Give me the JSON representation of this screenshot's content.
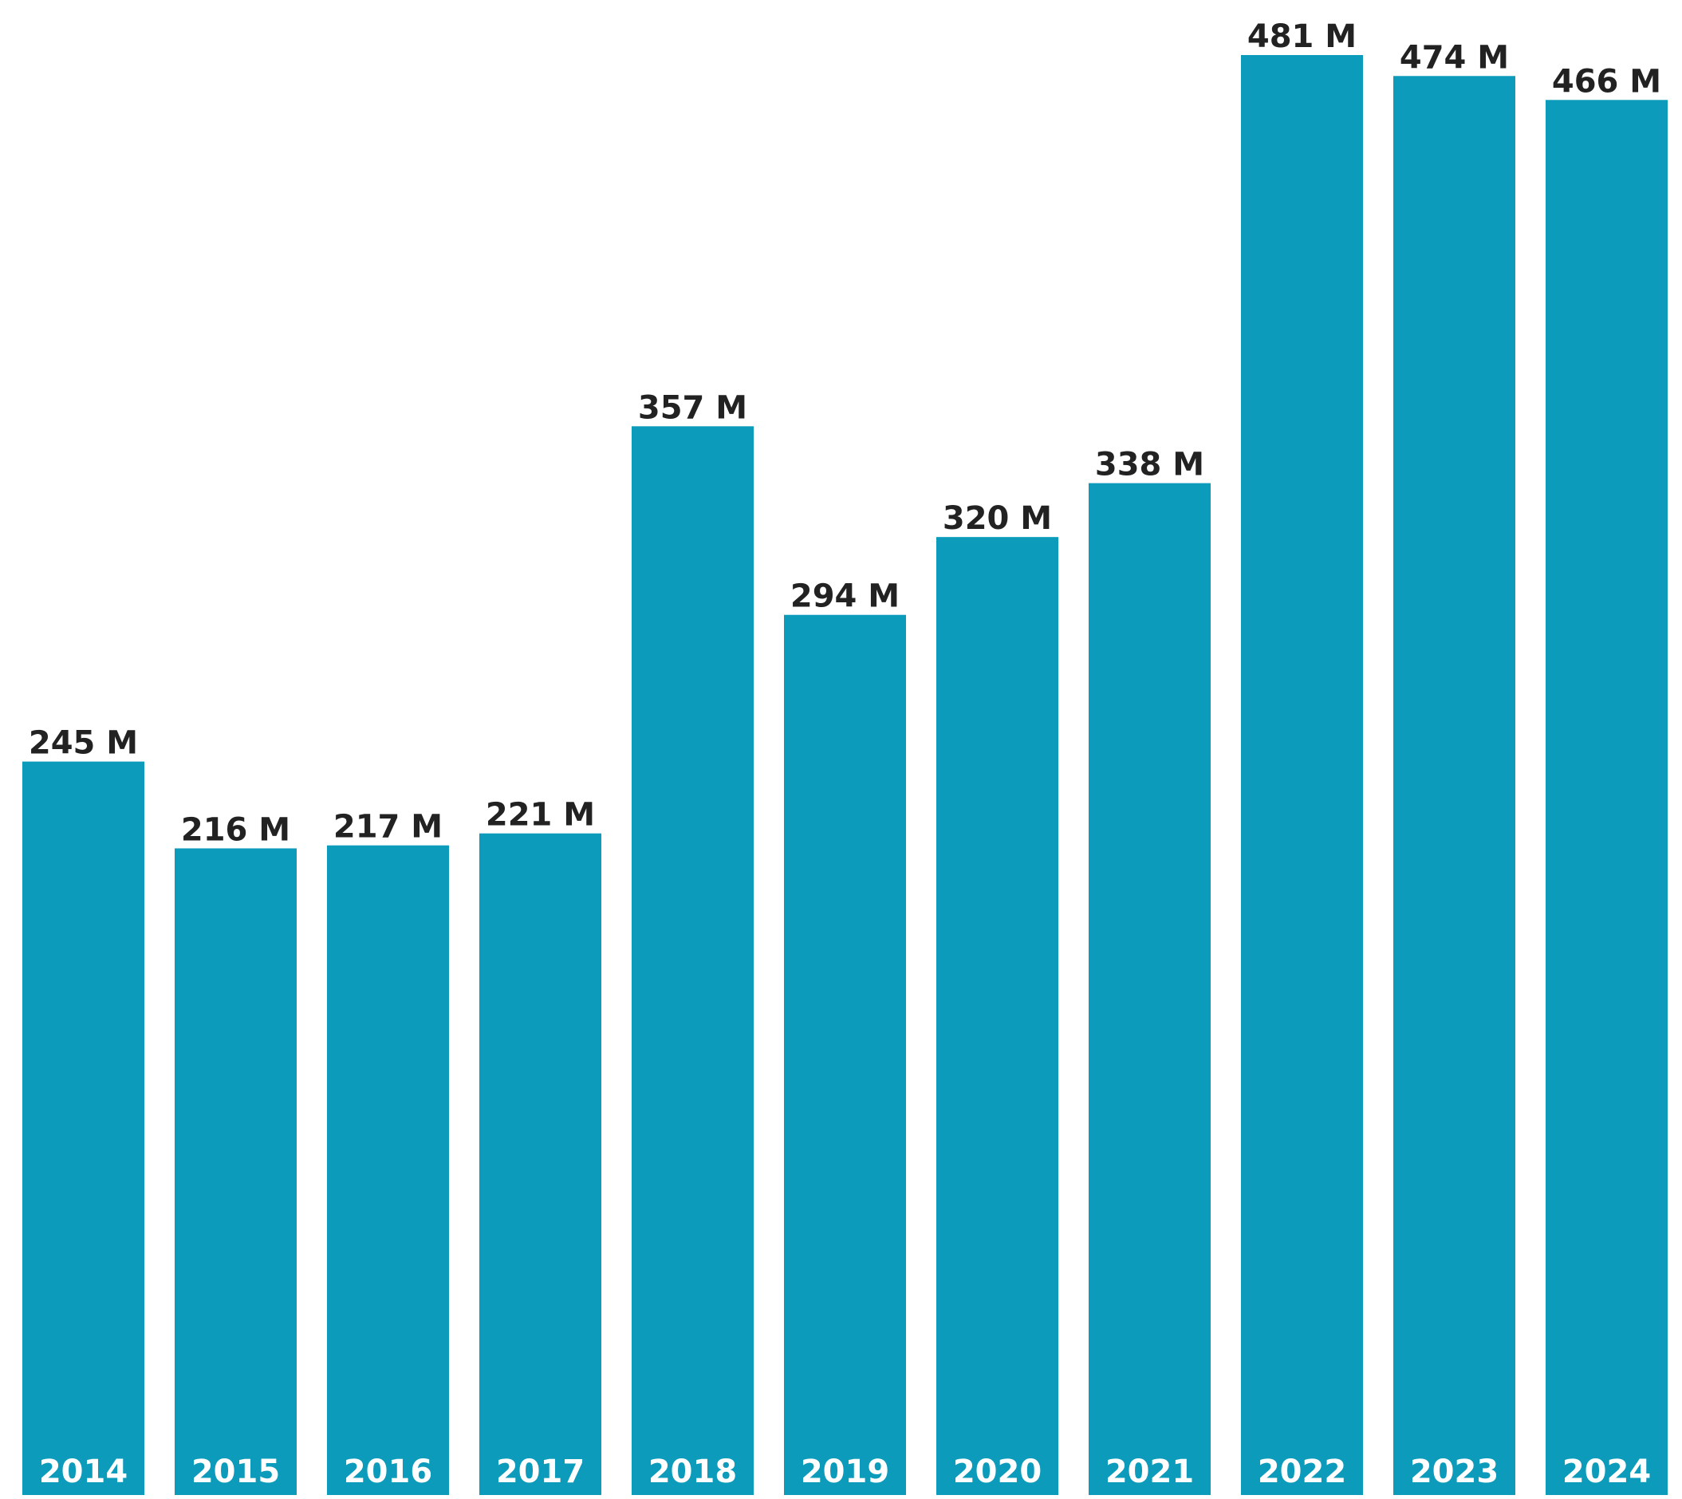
{
  "chart_data": {
    "type": "bar",
    "categories": [
      "2014",
      "2015",
      "2016",
      "2017",
      "2018",
      "2019",
      "2020",
      "2021",
      "2022",
      "2023",
      "2024"
    ],
    "values": [
      245,
      216,
      217,
      221,
      357,
      294,
      320,
      338,
      481,
      474,
      466
    ],
    "value_labels": [
      "245 M",
      "216 M",
      "217 M",
      "221 M",
      "357 M",
      "294 M",
      "320 M",
      "338 M",
      "481 M",
      "474 M",
      "466 M"
    ],
    "title": "",
    "xlabel": "",
    "ylabel": "",
    "ylim": [
      0,
      481
    ],
    "grid": false,
    "legend": "none",
    "bar_color": "#0c9bbb",
    "value_label_color": "#222222",
    "category_label_color": "#ffffff"
  }
}
